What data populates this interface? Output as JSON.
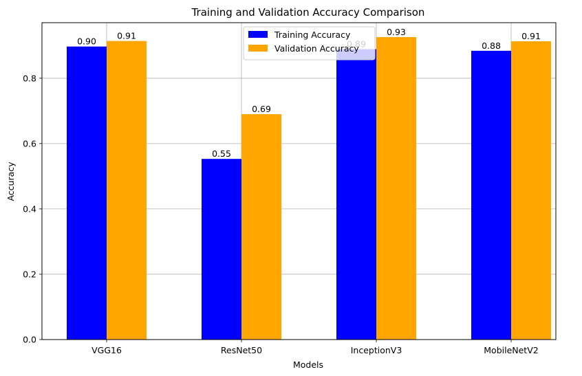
{
  "chart_data": {
    "type": "bar",
    "title": "Training and Validation Accuracy Comparison",
    "xlabel": "Models",
    "ylabel": "Accuracy",
    "categories": [
      "VGG16",
      "ResNet50",
      "InceptionV3",
      "MobileNetV2"
    ],
    "series": [
      {
        "name": "Training Accuracy",
        "color": "#0000ff",
        "values": [
          0.897,
          0.553,
          0.889,
          0.884
        ],
        "labels": [
          "0.90",
          "0.55",
          "0.89",
          "0.88"
        ]
      },
      {
        "name": "Validation Accuracy",
        "color": "#ffa500",
        "values": [
          0.914,
          0.69,
          0.926,
          0.913
        ],
        "labels": [
          "0.91",
          "0.69",
          "0.93",
          "0.91"
        ]
      }
    ],
    "ylim": [
      0,
      0.97
    ],
    "yticks": [
      0.0,
      0.2,
      0.4,
      0.6,
      0.8
    ],
    "ytick_labels": [
      "0.0",
      "0.2",
      "0.4",
      "0.6",
      "0.8"
    ],
    "grid": true,
    "legend_position": "top-center"
  }
}
